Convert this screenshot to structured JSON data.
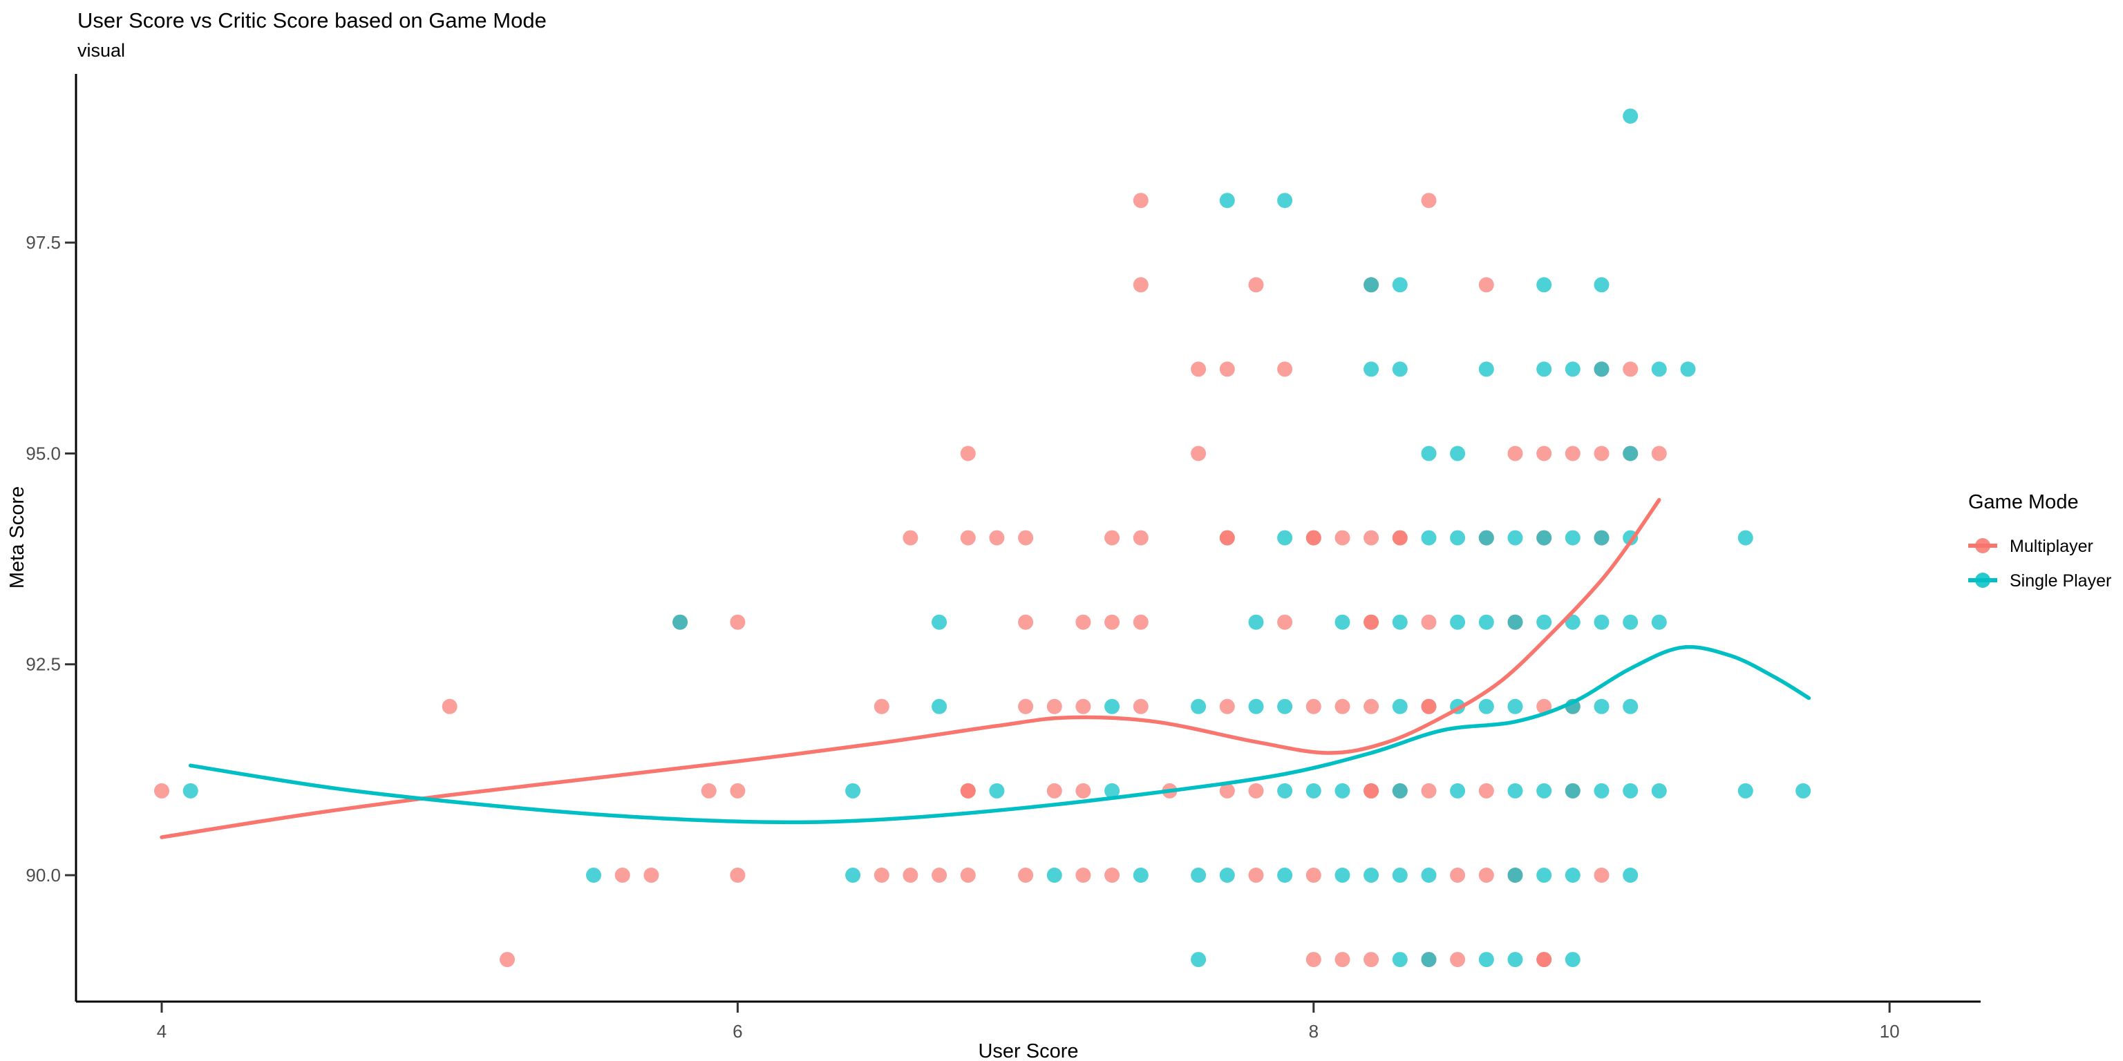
{
  "title": "User Score vs Critic Score based on Game Mode",
  "subtitle": "visual",
  "chart_data": {
    "type": "scatter",
    "title": "User Score vs Critic Score based on Game Mode",
    "subtitle": "visual",
    "xlabel": "User Score",
    "ylabel": "Meta Score",
    "xlim": [
      3.7,
      10.3
    ],
    "ylim": [
      88.5,
      99.5
    ],
    "x_ticks": [
      4,
      6,
      8,
      10
    ],
    "y_ticks": [
      90.0,
      92.5,
      95.0,
      97.5
    ],
    "x_tick_labels": [
      "4",
      "6",
      "8",
      "10"
    ],
    "y_tick_labels": [
      "90.0",
      "92.5",
      "95.0",
      "97.5"
    ],
    "grid": false,
    "legend": {
      "title": "Game Mode",
      "position": "right",
      "entries": [
        {
          "label": "Multiplayer",
          "color": "#F8766D"
        },
        {
          "label": "Single Player",
          "color": "#00BFC4"
        }
      ]
    },
    "point_style": {
      "radius": 11,
      "opacity": 0.7
    },
    "series": [
      {
        "name": "Multiplayer",
        "color": "#F8766D",
        "points": [
          [
            7.4,
            98
          ],
          [
            8.4,
            98
          ],
          [
            7.4,
            97
          ],
          [
            7.8,
            97
          ],
          [
            8.2,
            97
          ],
          [
            8.6,
            97
          ],
          [
            7.6,
            96
          ],
          [
            7.7,
            96
          ],
          [
            7.9,
            96
          ],
          [
            9.0,
            96
          ],
          [
            9.1,
            96
          ],
          [
            6.8,
            95
          ],
          [
            7.6,
            95
          ],
          [
            8.7,
            95
          ],
          [
            8.8,
            95
          ],
          [
            8.9,
            95
          ],
          [
            9.0,
            95
          ],
          [
            9.1,
            95
          ],
          [
            9.2,
            95
          ],
          [
            6.6,
            94
          ],
          [
            6.8,
            94
          ],
          [
            6.9,
            94
          ],
          [
            7.0,
            94
          ],
          [
            7.3,
            94
          ],
          [
            7.4,
            94
          ],
          [
            7.7,
            94
          ],
          [
            7.7,
            94
          ],
          [
            8.0,
            94
          ],
          [
            8.0,
            94
          ],
          [
            8.1,
            94
          ],
          [
            8.2,
            94
          ],
          [
            8.3,
            94
          ],
          [
            8.3,
            94
          ],
          [
            8.6,
            94
          ],
          [
            8.8,
            94
          ],
          [
            9.0,
            94
          ],
          [
            5.8,
            93
          ],
          [
            6.0,
            93
          ],
          [
            7.0,
            93
          ],
          [
            7.2,
            93
          ],
          [
            7.3,
            93
          ],
          [
            7.4,
            93
          ],
          [
            7.9,
            93
          ],
          [
            8.2,
            93
          ],
          [
            8.2,
            93
          ],
          [
            8.4,
            93
          ],
          [
            8.7,
            93
          ],
          [
            5.0,
            92
          ],
          [
            6.5,
            92
          ],
          [
            7.0,
            92
          ],
          [
            7.1,
            92
          ],
          [
            7.2,
            92
          ],
          [
            7.4,
            92
          ],
          [
            7.7,
            92
          ],
          [
            8.0,
            92
          ],
          [
            8.1,
            92
          ],
          [
            8.2,
            92
          ],
          [
            8.4,
            92
          ],
          [
            8.4,
            92
          ],
          [
            8.8,
            92
          ],
          [
            8.9,
            92
          ],
          [
            4.0,
            91
          ],
          [
            5.9,
            91
          ],
          [
            6.0,
            91
          ],
          [
            6.8,
            91
          ],
          [
            6.8,
            91
          ],
          [
            7.1,
            91
          ],
          [
            7.2,
            91
          ],
          [
            7.5,
            91
          ],
          [
            7.7,
            91
          ],
          [
            7.8,
            91
          ],
          [
            8.2,
            91
          ],
          [
            8.2,
            91
          ],
          [
            8.3,
            91
          ],
          [
            8.4,
            91
          ],
          [
            8.6,
            91
          ],
          [
            8.9,
            91
          ],
          [
            5.6,
            90
          ],
          [
            5.7,
            90
          ],
          [
            6.0,
            90
          ],
          [
            6.5,
            90
          ],
          [
            6.6,
            90
          ],
          [
            6.7,
            90
          ],
          [
            6.8,
            90
          ],
          [
            7.0,
            90
          ],
          [
            7.2,
            90
          ],
          [
            7.3,
            90
          ],
          [
            7.8,
            90
          ],
          [
            8.0,
            90
          ],
          [
            8.5,
            90
          ],
          [
            8.6,
            90
          ],
          [
            8.7,
            90
          ],
          [
            9.0,
            90
          ],
          [
            5.2,
            89
          ],
          [
            8.0,
            89
          ],
          [
            8.1,
            89
          ],
          [
            8.2,
            89
          ],
          [
            8.4,
            89
          ],
          [
            8.5,
            89
          ],
          [
            8.8,
            89
          ],
          [
            8.8,
            89
          ]
        ],
        "smooth_line": [
          [
            4.0,
            90.45
          ],
          [
            4.5,
            90.72
          ],
          [
            5.0,
            90.95
          ],
          [
            5.5,
            91.15
          ],
          [
            6.0,
            91.35
          ],
          [
            6.5,
            91.57
          ],
          [
            6.9,
            91.77
          ],
          [
            7.15,
            91.87
          ],
          [
            7.45,
            91.82
          ],
          [
            7.8,
            91.58
          ],
          [
            8.05,
            91.45
          ],
          [
            8.25,
            91.57
          ],
          [
            8.45,
            91.88
          ],
          [
            8.65,
            92.3
          ],
          [
            8.85,
            92.95
          ],
          [
            9.0,
            93.5
          ],
          [
            9.1,
            93.95
          ],
          [
            9.2,
            94.45
          ]
        ]
      },
      {
        "name": "Single Player",
        "color": "#00BFC4",
        "points": [
          [
            9.1,
            99
          ],
          [
            7.7,
            98
          ],
          [
            7.9,
            98
          ],
          [
            8.2,
            97
          ],
          [
            8.3,
            97
          ],
          [
            8.8,
            97
          ],
          [
            9.0,
            97
          ],
          [
            8.2,
            96
          ],
          [
            8.3,
            96
          ],
          [
            8.6,
            96
          ],
          [
            8.8,
            96
          ],
          [
            8.9,
            96
          ],
          [
            9.0,
            96
          ],
          [
            9.2,
            96
          ],
          [
            9.3,
            96
          ],
          [
            8.4,
            95
          ],
          [
            8.5,
            95
          ],
          [
            9.1,
            95
          ],
          [
            7.9,
            94
          ],
          [
            8.4,
            94
          ],
          [
            8.5,
            94
          ],
          [
            8.6,
            94
          ],
          [
            8.7,
            94
          ],
          [
            8.8,
            94
          ],
          [
            8.9,
            94
          ],
          [
            9.0,
            94
          ],
          [
            9.1,
            94
          ],
          [
            9.5,
            94
          ],
          [
            5.8,
            93
          ],
          [
            6.7,
            93
          ],
          [
            7.8,
            93
          ],
          [
            8.1,
            93
          ],
          [
            8.3,
            93
          ],
          [
            8.5,
            93
          ],
          [
            8.6,
            93
          ],
          [
            8.7,
            93
          ],
          [
            8.8,
            93
          ],
          [
            8.9,
            93
          ],
          [
            9.0,
            93
          ],
          [
            9.1,
            93
          ],
          [
            9.2,
            93
          ],
          [
            6.7,
            92
          ],
          [
            7.3,
            92
          ],
          [
            7.6,
            92
          ],
          [
            7.8,
            92
          ],
          [
            7.9,
            92
          ],
          [
            8.3,
            92
          ],
          [
            8.5,
            92
          ],
          [
            8.6,
            92
          ],
          [
            8.7,
            92
          ],
          [
            8.9,
            92
          ],
          [
            9.0,
            92
          ],
          [
            9.1,
            92
          ],
          [
            4.1,
            91
          ],
          [
            6.4,
            91
          ],
          [
            6.9,
            91
          ],
          [
            7.3,
            91
          ],
          [
            7.9,
            91
          ],
          [
            8.0,
            91
          ],
          [
            8.1,
            91
          ],
          [
            8.3,
            91
          ],
          [
            8.5,
            91
          ],
          [
            8.7,
            91
          ],
          [
            8.8,
            91
          ],
          [
            8.9,
            91
          ],
          [
            9.0,
            91
          ],
          [
            9.1,
            91
          ],
          [
            9.2,
            91
          ],
          [
            9.5,
            91
          ],
          [
            9.7,
            91
          ],
          [
            5.5,
            90
          ],
          [
            6.4,
            90
          ],
          [
            7.1,
            90
          ],
          [
            7.4,
            90
          ],
          [
            7.6,
            90
          ],
          [
            7.7,
            90
          ],
          [
            7.9,
            90
          ],
          [
            8.1,
            90
          ],
          [
            8.2,
            90
          ],
          [
            8.3,
            90
          ],
          [
            8.4,
            90
          ],
          [
            8.7,
            90
          ],
          [
            8.8,
            90
          ],
          [
            8.9,
            90
          ],
          [
            9.1,
            90
          ],
          [
            7.6,
            89
          ],
          [
            8.3,
            89
          ],
          [
            8.4,
            89
          ],
          [
            8.6,
            89
          ],
          [
            8.7,
            89
          ],
          [
            8.9,
            89
          ]
        ],
        "smooth_line": [
          [
            4.1,
            91.3
          ],
          [
            4.6,
            91.03
          ],
          [
            5.1,
            90.84
          ],
          [
            5.6,
            90.7
          ],
          [
            6.1,
            90.63
          ],
          [
            6.5,
            90.66
          ],
          [
            7.0,
            90.8
          ],
          [
            7.5,
            91.0
          ],
          [
            7.9,
            91.2
          ],
          [
            8.2,
            91.45
          ],
          [
            8.45,
            91.72
          ],
          [
            8.7,
            91.82
          ],
          [
            8.9,
            92.05
          ],
          [
            9.1,
            92.45
          ],
          [
            9.28,
            92.7
          ],
          [
            9.45,
            92.6
          ],
          [
            9.6,
            92.35
          ],
          [
            9.72,
            92.1
          ]
        ]
      }
    ]
  }
}
